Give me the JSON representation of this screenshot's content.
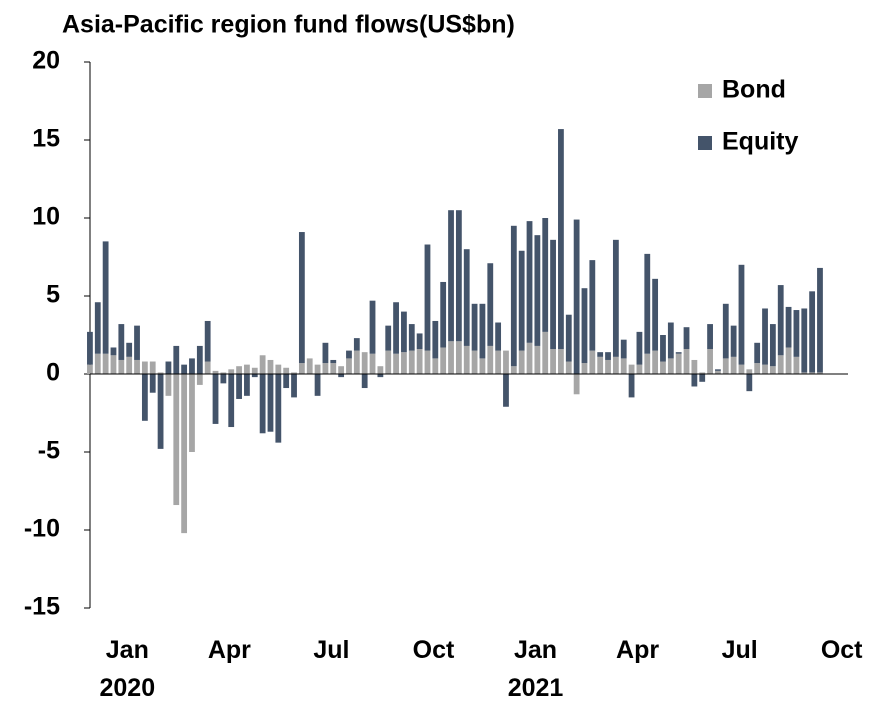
{
  "chart_data": {
    "type": "stacked_bar",
    "title": "Asia-Pacific region fund flows(US$bn)",
    "categories": [
      null,
      null,
      null,
      null,
      "Jan 2020",
      null,
      null,
      null,
      null,
      null,
      null,
      null,
      null,
      null,
      null,
      null,
      null,
      "Apr",
      null,
      null,
      null,
      null,
      null,
      null,
      null,
      null,
      null,
      null,
      null,
      null,
      "Jul",
      null,
      null,
      null,
      null,
      null,
      null,
      null,
      null,
      null,
      null,
      null,
      null,
      "Oct",
      null,
      null,
      null,
      null,
      null,
      null,
      null,
      null,
      null,
      null,
      null,
      null,
      "Jan 2021",
      null,
      null,
      null,
      null,
      null,
      null,
      null,
      null,
      null,
      null,
      null,
      null,
      "Apr",
      null,
      null,
      null,
      null,
      null,
      null,
      null,
      null,
      null,
      null,
      null,
      null,
      "Jul",
      null,
      null,
      null,
      null,
      null,
      null,
      null,
      null,
      null,
      null,
      null,
      null,
      "Oct"
    ],
    "series": [
      {
        "name": "Bond",
        "color": "#a6a6a6",
        "values": [
          0.6,
          1.3,
          1.3,
          1.2,
          0.9,
          1.1,
          0.9,
          0.8,
          0.8,
          0.1,
          -1.4,
          -8.4,
          -10.2,
          -5.0,
          -0.7,
          0.8,
          0.2,
          0.1,
          0.3,
          0.5,
          0.6,
          0.4,
          1.2,
          0.9,
          0.6,
          0.4,
          0.1,
          0.7,
          1.0,
          0.6,
          0.7,
          0.7,
          0.5,
          1.0,
          1.5,
          1.4,
          1.3,
          0.5,
          1.5,
          1.3,
          1.4,
          1.5,
          1.6,
          1.5,
          1.0,
          1.7,
          2.1,
          2.1,
          1.8,
          1.5,
          1.0,
          1.8,
          1.5,
          1.5,
          0.5,
          1.5,
          2.0,
          1.8,
          2.7,
          1.6,
          1.6,
          0.8,
          -1.3,
          0.7,
          1.5,
          1.1,
          0.9,
          1.1,
          1.0,
          0.6,
          0.6,
          1.3,
          1.5,
          0.8,
          1.0,
          1.3,
          1.6,
          0.9,
          0.1,
          1.6,
          0.2,
          1.0,
          1.1,
          0.6,
          0.3,
          0.7,
          0.6,
          0.5,
          1.2,
          1.7,
          1.1,
          0.1,
          0.1,
          0.1,
          null,
          null
        ]
      },
      {
        "name": "Equity",
        "color": "#44546a",
        "values": [
          2.1,
          3.3,
          7.2,
          0.5,
          2.3,
          0.9,
          2.2,
          -3.0,
          -1.2,
          -4.8,
          0.8,
          1.8,
          0.6,
          1.0,
          1.8,
          2.6,
          -3.2,
          -0.6,
          -3.4,
          -1.6,
          -1.4,
          -0.2,
          -3.8,
          -3.7,
          -4.4,
          -0.9,
          -1.5,
          8.4,
          0.0,
          -1.4,
          1.3,
          0.2,
          -0.2,
          0.5,
          0.8,
          -0.9,
          3.4,
          -0.2,
          1.6,
          3.3,
          2.6,
          1.7,
          1.0,
          6.8,
          2.4,
          4.2,
          8.4,
          8.4,
          6.2,
          3.0,
          3.5,
          5.3,
          1.8,
          -2.1,
          9.0,
          6.4,
          7.8,
          7.1,
          7.3,
          7.0,
          14.1,
          3.0,
          9.9,
          4.8,
          5.8,
          0.3,
          0.5,
          7.5,
          1.2,
          -1.5,
          2.1,
          6.4,
          4.6,
          1.7,
          2.3,
          0.1,
          1.4,
          -0.8,
          -0.5,
          1.6,
          0.1,
          3.5,
          2.0,
          6.4,
          -1.1,
          1.3,
          3.6,
          2.7,
          4.5,
          2.6,
          3.0,
          4.1,
          5.2,
          6.7,
          null,
          null
        ]
      }
    ],
    "ylim": [
      -15,
      20
    ],
    "yticks": [
      -15,
      -10,
      -5,
      0,
      5,
      10,
      15,
      20
    ],
    "grid": false,
    "legend": "upper right"
  }
}
